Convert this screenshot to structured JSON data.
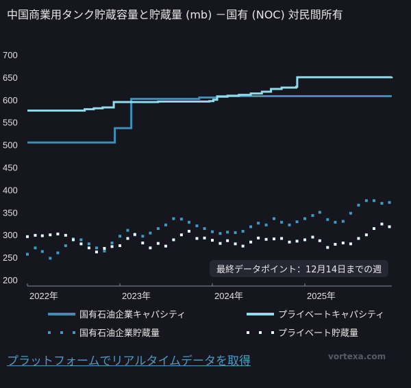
{
  "chart_data": {
    "type": "line",
    "title": "中国商業用タンク貯蔵容量と貯蔵量 (mb) －国有 (NOC) 対民間所有",
    "ylim": [
      200,
      700
    ],
    "yticks": [
      "700",
      "650",
      "600",
      "550",
      "500",
      "450",
      "400",
      "350",
      "300",
      "250",
      "200"
    ],
    "xticks": [
      {
        "date": "2022-01-01",
        "label": "2022年"
      },
      {
        "date": "2023-01-01",
        "label": "2023年"
      },
      {
        "date": "2024-01-01",
        "label": "2024年"
      },
      {
        "date": "2025-01-01",
        "label": "2025年"
      }
    ],
    "xlim": [
      "2022-01-01",
      "2025-12-14"
    ],
    "grid": false,
    "legend_placement": "bottom",
    "annotation": "最終データポイント：12月14日までの週",
    "series": [
      {
        "name": "国有石油企業キャパシティ",
        "style": "step",
        "color": "#3d8db5",
        "points": [
          [
            "2022-01-01",
            505
          ],
          [
            "2022-12-12",
            537
          ],
          [
            "2023-02-15",
            602
          ],
          [
            "2023-11-10",
            605
          ],
          [
            "2024-01-20",
            608
          ],
          [
            "2025-12-10",
            608
          ]
        ]
      },
      {
        "name": "プライベートキャパシティ",
        "style": "step",
        "color": "#8fdcec",
        "points": [
          [
            "2022-01-01",
            576
          ],
          [
            "2022-07-10",
            576
          ],
          [
            "2022-08-15",
            579
          ],
          [
            "2022-09-20",
            581
          ],
          [
            "2022-10-25",
            583
          ],
          [
            "2022-12-08",
            595
          ],
          [
            "2023-06-01",
            596
          ],
          [
            "2023-12-20",
            597
          ],
          [
            "2024-01-05",
            600
          ],
          [
            "2024-01-20",
            607
          ],
          [
            "2024-03-01",
            609
          ],
          [
            "2024-04-15",
            611
          ],
          [
            "2024-06-01",
            614
          ],
          [
            "2024-07-15",
            618
          ],
          [
            "2024-08-20",
            624
          ],
          [
            "2024-10-01",
            627
          ],
          [
            "2024-11-28",
            629
          ],
          [
            "2024-12-02",
            650
          ],
          [
            "2025-12-10",
            651
          ]
        ]
      },
      {
        "name": "国有石油企業貯蔵量",
        "style": "dots",
        "color": "#3d9cc4",
        "dates": [
          "2022-01-01",
          "2022-02-01",
          "2022-03-01",
          "2022-04-01",
          "2022-05-01",
          "2022-06-01",
          "2022-07-01",
          "2022-08-01",
          "2022-09-01",
          "2022-10-01",
          "2022-11-01",
          "2022-12-01",
          "2023-01-01",
          "2023-02-01",
          "2023-03-01",
          "2023-04-01",
          "2023-05-01",
          "2023-06-01",
          "2023-07-01",
          "2023-08-01",
          "2023-09-01",
          "2023-10-01",
          "2023-11-01",
          "2023-12-01",
          "2024-01-01",
          "2024-02-01",
          "2024-03-01",
          "2024-04-01",
          "2024-05-01",
          "2024-06-01",
          "2024-07-01",
          "2024-08-01",
          "2024-09-01",
          "2024-10-01",
          "2024-11-01",
          "2024-12-01",
          "2025-01-01",
          "2025-02-01",
          "2025-03-01",
          "2025-04-01",
          "2025-05-01",
          "2025-06-01",
          "2025-07-01",
          "2025-08-01",
          "2025-09-01",
          "2025-10-01",
          "2025-11-01",
          "2025-12-01"
        ],
        "values": [
          257,
          271,
          263,
          248,
          260,
          276,
          291,
          289,
          280,
          271,
          264,
          282,
          297,
          310,
          300,
          297,
          304,
          314,
          322,
          336,
          335,
          328,
          320,
          314,
          307,
          303,
          306,
          305,
          308,
          318,
          326,
          322,
          336,
          328,
          322,
          329,
          336,
          343,
          350,
          334,
          328,
          330,
          348,
          366,
          376,
          376,
          370,
          372
        ]
      },
      {
        "name": "プライベート貯蔵量",
        "style": "dots",
        "color": "#e8fbff",
        "dates": [
          "2022-01-01",
          "2022-02-01",
          "2022-03-01",
          "2022-04-01",
          "2022-05-01",
          "2022-06-01",
          "2022-07-01",
          "2022-08-01",
          "2022-09-01",
          "2022-10-01",
          "2022-11-01",
          "2022-12-01",
          "2023-01-01",
          "2023-02-01",
          "2023-03-01",
          "2023-04-01",
          "2023-05-01",
          "2023-06-01",
          "2023-07-01",
          "2023-08-01",
          "2023-09-01",
          "2023-10-01",
          "2023-11-01",
          "2023-12-01",
          "2024-01-01",
          "2024-02-01",
          "2024-03-01",
          "2024-04-01",
          "2024-05-01",
          "2024-06-01",
          "2024-07-01",
          "2024-08-01",
          "2024-09-01",
          "2024-10-01",
          "2024-11-01",
          "2024-12-01",
          "2025-01-01",
          "2025-02-01",
          "2025-03-01",
          "2025-04-01",
          "2025-05-01",
          "2025-06-01",
          "2025-07-01",
          "2025-08-01",
          "2025-09-01",
          "2025-10-01",
          "2025-11-01",
          "2025-12-01"
        ],
        "values": [
          296,
          299,
          298,
          300,
          302,
          299,
          289,
          280,
          271,
          262,
          270,
          274,
          276,
          292,
          301,
          282,
          271,
          281,
          275,
          289,
          300,
          308,
          292,
          293,
          288,
          281,
          287,
          280,
          275,
          284,
          293,
          290,
          291,
          292,
          284,
          286,
          289,
          295,
          287,
          272,
          279,
          282,
          280,
          292,
          300,
          314,
          324,
          318
        ]
      }
    ]
  },
  "footer": {
    "link_text": "プラットフォームでリアルタイムデータを取得",
    "brand": "vortexa.com"
  }
}
